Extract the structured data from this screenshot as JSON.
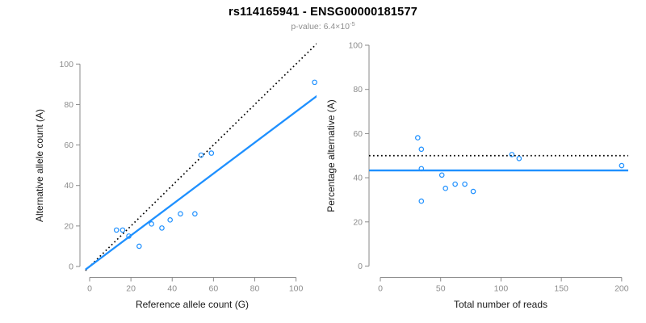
{
  "title": "rs114165941 - ENSG00000181577",
  "subtitle": {
    "text": "p-value: 6.4×10",
    "exponent": "-5"
  },
  "colors": {
    "accent_blue": "#1E90FF",
    "identity_line_black": "#000000",
    "axis_gray": "#8A8A8A",
    "tick_label_gray": "#8C8C8C",
    "axis_title_color": "#1A1A1A",
    "subtitle_gray": "#8F8F8F",
    "background": "#FFFFFF"
  },
  "chart_data": [
    {
      "type": "scatter",
      "panel": "left",
      "xlabel": "Reference allele count (G)",
      "ylabel": "Alternative allele count (A)",
      "xlim": [
        0,
        110
      ],
      "ylim": [
        0,
        110
      ],
      "xticks": [
        0,
        20,
        40,
        60,
        80,
        100
      ],
      "yticks": [
        0,
        20,
        40,
        60,
        80,
        100
      ],
      "grid": false,
      "legend": "none",
      "marker": "open-circle",
      "points": [
        [
          13,
          18
        ],
        [
          16,
          18
        ],
        [
          19,
          15
        ],
        [
          24,
          10
        ],
        [
          30,
          21
        ],
        [
          35,
          19
        ],
        [
          39,
          23
        ],
        [
          44,
          26
        ],
        [
          51,
          26
        ],
        [
          54,
          55
        ],
        [
          59,
          56
        ],
        [
          109,
          91
        ]
      ],
      "lines": [
        {
          "name": "identity",
          "style": "dotted",
          "color": "#000000",
          "slope": 1,
          "intercept": 0
        },
        {
          "name": "fit",
          "style": "solid",
          "color": "#1E90FF",
          "slope": 0.765,
          "intercept": 0
        }
      ]
    },
    {
      "type": "scatter",
      "panel": "right",
      "xlabel": "Total number of reads",
      "ylabel": "Percentage alternative (A)",
      "xlim": [
        0,
        205
      ],
      "ylim": [
        0,
        100
      ],
      "xticks": [
        0,
        50,
        100,
        150,
        200
      ],
      "yticks": [
        0,
        20,
        40,
        60,
        80,
        100
      ],
      "grid": false,
      "legend": "none",
      "marker": "open-circle",
      "points": [
        [
          31,
          58.1
        ],
        [
          34,
          52.9
        ],
        [
          34,
          44.1
        ],
        [
          34,
          29.4
        ],
        [
          51,
          41.2
        ],
        [
          54,
          35.2
        ],
        [
          62,
          37.1
        ],
        [
          70,
          37.1
        ],
        [
          77,
          33.8
        ],
        [
          109,
          50.5
        ],
        [
          115,
          48.7
        ],
        [
          200,
          45.5
        ]
      ],
      "lines": [
        {
          "name": "expected-50pct",
          "style": "dotted",
          "color": "#000000",
          "y": 50
        },
        {
          "name": "mean-percentage",
          "style": "solid",
          "color": "#1E90FF",
          "y": 43.3
        }
      ]
    }
  ]
}
